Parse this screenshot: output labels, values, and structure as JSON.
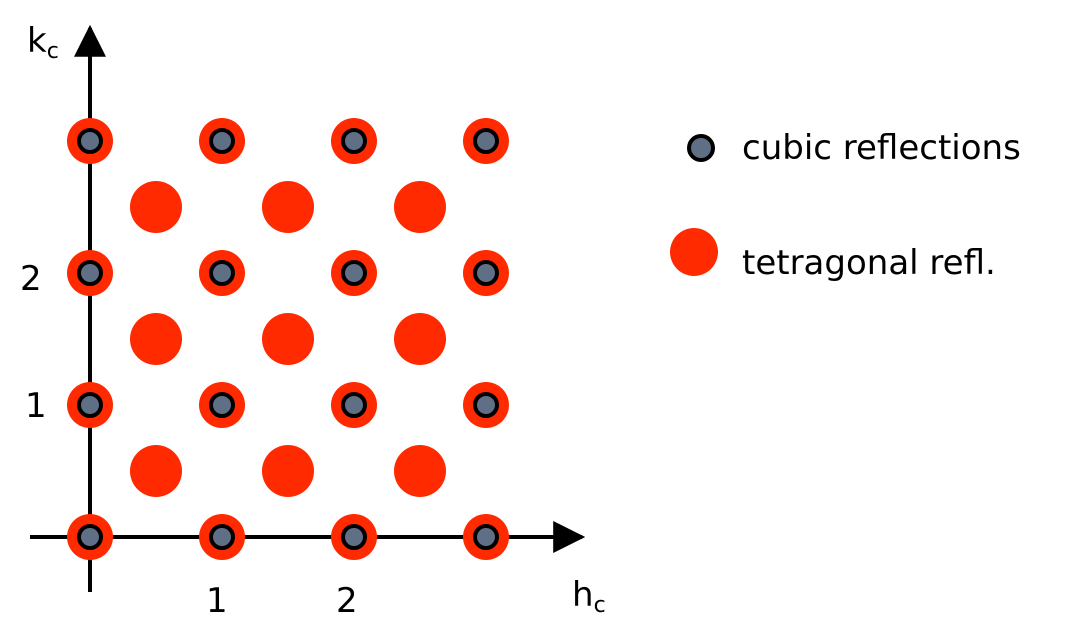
{
  "axes": {
    "x_label": "h",
    "x_label_sub": "c",
    "y_label": "k",
    "y_label_sub": "c",
    "x_ticks": [
      "1",
      "2"
    ],
    "y_ticks": [
      "1",
      "2"
    ]
  },
  "legend": {
    "cubic_label": "cubic reflections",
    "tetragonal_label": "tetragonal refl."
  },
  "colors": {
    "tetragonal": "#ff2a00",
    "cubic_fill": "#5f6f85",
    "cubic_stroke": "#000000",
    "axis": "#000000"
  },
  "cubic_reflections": [
    [
      0,
      0
    ],
    [
      1,
      0
    ],
    [
      2,
      0
    ],
    [
      3,
      0
    ],
    [
      0,
      1
    ],
    [
      1,
      1
    ],
    [
      2,
      1
    ],
    [
      3,
      1
    ],
    [
      0,
      2
    ],
    [
      1,
      2
    ],
    [
      2,
      2
    ],
    [
      3,
      2
    ],
    [
      0,
      3
    ],
    [
      1,
      3
    ],
    [
      2,
      3
    ],
    [
      3,
      3
    ]
  ],
  "tetragonal_reflections": [
    [
      0.5,
      0.5
    ],
    [
      1.5,
      0.5
    ],
    [
      2.5,
      0.5
    ],
    [
      0.5,
      1.5
    ],
    [
      1.5,
      1.5
    ],
    [
      2.5,
      1.5
    ],
    [
      0.5,
      2.5
    ],
    [
      1.5,
      2.5
    ],
    [
      2.5,
      2.5
    ]
  ]
}
